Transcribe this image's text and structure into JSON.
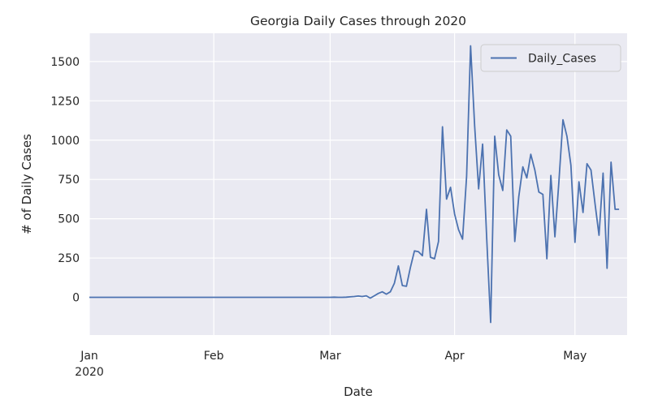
{
  "chart_data": {
    "type": "line",
    "title": "Georgia Daily Cases through 2020",
    "xlabel": "Date",
    "ylabel": "# of Daily Cases",
    "x_range": [
      "2020-01-01",
      "2020-05-14"
    ],
    "ylim": [
      -240,
      1680
    ],
    "x_ticks": [
      {
        "date": "2020-01-01",
        "label": "Jan",
        "sublabel": "2020"
      },
      {
        "date": "2020-02-01",
        "label": "Feb",
        "sublabel": ""
      },
      {
        "date": "2020-03-01",
        "label": "Mar",
        "sublabel": ""
      },
      {
        "date": "2020-04-01",
        "label": "Apr",
        "sublabel": ""
      },
      {
        "date": "2020-05-01",
        "label": "May",
        "sublabel": ""
      }
    ],
    "y_ticks": [
      0,
      250,
      500,
      750,
      1000,
      1250,
      1500
    ],
    "grid": true,
    "legend_position": "top-right",
    "colors": {
      "background": "#eaeaf2",
      "grid": "#ffffff",
      "line": "#4c72b0",
      "text": "#262626"
    },
    "series": [
      {
        "name": "Daily_Cases",
        "points": [
          [
            "2020-01-01",
            0
          ],
          [
            "2020-03-01",
            0
          ],
          [
            "2020-03-02",
            1
          ],
          [
            "2020-03-03",
            0
          ],
          [
            "2020-03-04",
            0
          ],
          [
            "2020-03-05",
            1
          ],
          [
            "2020-03-06",
            3
          ],
          [
            "2020-03-07",
            5
          ],
          [
            "2020-03-08",
            8
          ],
          [
            "2020-03-09",
            5
          ],
          [
            "2020-03-10",
            10
          ],
          [
            "2020-03-11",
            -5
          ],
          [
            "2020-03-12",
            10
          ],
          [
            "2020-03-13",
            25
          ],
          [
            "2020-03-14",
            35
          ],
          [
            "2020-03-15",
            20
          ],
          [
            "2020-03-16",
            35
          ],
          [
            "2020-03-17",
            90
          ],
          [
            "2020-03-18",
            200
          ],
          [
            "2020-03-19",
            75
          ],
          [
            "2020-03-20",
            70
          ],
          [
            "2020-03-21",
            190
          ],
          [
            "2020-03-22",
            295
          ],
          [
            "2020-03-23",
            290
          ],
          [
            "2020-03-24",
            265
          ],
          [
            "2020-03-25",
            560
          ],
          [
            "2020-03-26",
            255
          ],
          [
            "2020-03-27",
            245
          ],
          [
            "2020-03-28",
            355
          ],
          [
            "2020-03-29",
            1085
          ],
          [
            "2020-03-30",
            625
          ],
          [
            "2020-03-31",
            700
          ],
          [
            "2020-04-01",
            530
          ],
          [
            "2020-04-02",
            430
          ],
          [
            "2020-04-03",
            370
          ],
          [
            "2020-04-04",
            770
          ],
          [
            "2020-04-05",
            1600
          ],
          [
            "2020-04-06",
            1090
          ],
          [
            "2020-04-07",
            690
          ],
          [
            "2020-04-08",
            975
          ],
          [
            "2020-04-09",
            380
          ],
          [
            "2020-04-10",
            -160
          ],
          [
            "2020-04-11",
            1025
          ],
          [
            "2020-04-12",
            780
          ],
          [
            "2020-04-13",
            680
          ],
          [
            "2020-04-14",
            1065
          ],
          [
            "2020-04-15",
            1025
          ],
          [
            "2020-04-16",
            355
          ],
          [
            "2020-04-17",
            640
          ],
          [
            "2020-04-18",
            830
          ],
          [
            "2020-04-19",
            760
          ],
          [
            "2020-04-20",
            910
          ],
          [
            "2020-04-21",
            810
          ],
          [
            "2020-04-22",
            670
          ],
          [
            "2020-04-23",
            655
          ],
          [
            "2020-04-24",
            245
          ],
          [
            "2020-04-25",
            775
          ],
          [
            "2020-04-26",
            385
          ],
          [
            "2020-04-27",
            735
          ],
          [
            "2020-04-28",
            1130
          ],
          [
            "2020-04-29",
            1025
          ],
          [
            "2020-04-30",
            840
          ],
          [
            "2020-05-01",
            350
          ],
          [
            "2020-05-02",
            735
          ],
          [
            "2020-05-03",
            540
          ],
          [
            "2020-05-04",
            850
          ],
          [
            "2020-05-05",
            810
          ],
          [
            "2020-05-06",
            595
          ],
          [
            "2020-05-07",
            395
          ],
          [
            "2020-05-08",
            790
          ],
          [
            "2020-05-09",
            185
          ],
          [
            "2020-05-10",
            860
          ],
          [
            "2020-05-11",
            560
          ],
          [
            "2020-05-12",
            560
          ]
        ]
      }
    ]
  }
}
